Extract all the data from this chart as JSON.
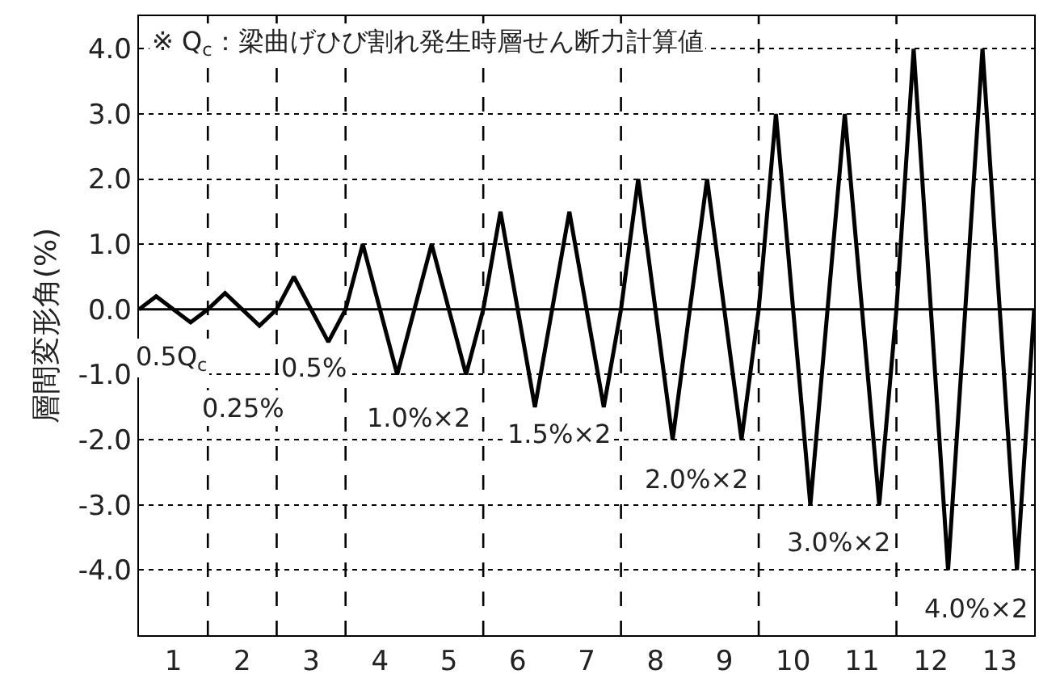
{
  "chart_data": {
    "type": "line",
    "ylabel": "層間変形角(%)",
    "x": [
      0,
      0.25,
      0.75,
      1,
      1.25,
      1.75,
      2,
      2.25,
      2.75,
      3,
      3.25,
      3.75,
      4,
      4.25,
      4.75,
      5,
      5.25,
      5.75,
      6,
      6.25,
      6.75,
      7,
      7.25,
      7.75,
      8,
      8.25,
      8.75,
      9,
      9.25,
      9.75,
      10,
      10.25,
      10.75,
      11,
      11.25,
      11.75,
      12,
      12.25,
      12.75,
      13
    ],
    "series": [
      {
        "color": "#000000",
        "values": [
          0,
          0.2,
          -0.2,
          0,
          0.25,
          -0.25,
          0,
          0.5,
          -0.5,
          0,
          1,
          -1,
          0,
          1,
          -1,
          0,
          1.5,
          -1.5,
          0,
          1.5,
          -1.5,
          0,
          2,
          -2,
          0,
          2,
          -2,
          0,
          3,
          -3,
          0,
          3,
          -3,
          0,
          4,
          -4,
          0,
          4,
          -4,
          0
        ]
      }
    ],
    "xlim": [
      0,
      13
    ],
    "xticks": [
      {
        "value": 0.5,
        "label": "1"
      },
      {
        "value": 1.5,
        "label": "2"
      },
      {
        "value": 2.5,
        "label": "3"
      },
      {
        "value": 3.5,
        "label": "4"
      },
      {
        "value": 4.5,
        "label": "5"
      },
      {
        "value": 5.5,
        "label": "6"
      },
      {
        "value": 6.5,
        "label": "7"
      },
      {
        "value": 7.5,
        "label": "8"
      },
      {
        "value": 8.5,
        "label": "9"
      },
      {
        "value": 9.5,
        "label": "10"
      },
      {
        "value": 10.5,
        "label": "11"
      },
      {
        "value": 11.5,
        "label": "12"
      },
      {
        "value": 12.5,
        "label": "13"
      }
    ],
    "ylim": [
      -5,
      4.5
    ],
    "yticks": [
      {
        "value": -4,
        "label": "-4.0"
      },
      {
        "value": -3,
        "label": "-3.0"
      },
      {
        "value": -2,
        "label": "-2.0"
      },
      {
        "value": -1,
        "label": "-1.0"
      },
      {
        "value": 0,
        "label": "0.0"
      },
      {
        "value": 1,
        "label": "1.0"
      },
      {
        "value": 2,
        "label": "2.0"
      },
      {
        "value": 3,
        "label": "3.0"
      },
      {
        "value": 4,
        "label": "4.0"
      }
    ],
    "grid": "y",
    "legend": false,
    "marker": "none",
    "line_style": "solid",
    "ref_lines": [
      {
        "axis": "y",
        "value": 0,
        "color": "#000000",
        "line_style": "solid"
      },
      {
        "axis": "x",
        "value": 1,
        "color": "#000000",
        "line_style": "dashed"
      },
      {
        "axis": "x",
        "value": 2,
        "color": "#000000",
        "line_style": "dashed"
      },
      {
        "axis": "x",
        "value": 3,
        "color": "#000000",
        "line_style": "dashed"
      },
      {
        "axis": "x",
        "value": 5,
        "color": "#000000",
        "line_style": "dashed"
      },
      {
        "axis": "x",
        "value": 7,
        "color": "#000000",
        "line_style": "dashed"
      },
      {
        "axis": "x",
        "value": 9,
        "color": "#000000",
        "line_style": "dashed"
      },
      {
        "axis": "x",
        "value": 11,
        "color": "#000000",
        "line_style": "dashed"
      }
    ],
    "annotations": [
      "※ Q$_{c}$：梁曲げひび割れ発生時層せん断力計算値",
      "0.5Q$_{c}$",
      "0.25%",
      "0.5%",
      "1.0%×2",
      "1.5%×2",
      "2.0%×2",
      "3.0%×2",
      "4.0%×2"
    ]
  }
}
